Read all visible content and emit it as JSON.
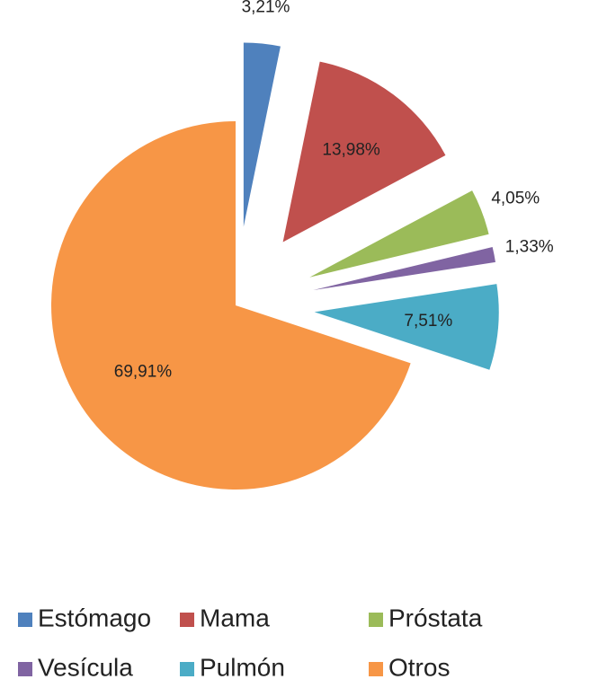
{
  "chart_data": {
    "type": "pie",
    "categories": [
      "Estómago",
      "Mama",
      "Próstata",
      "Vesícula",
      "Pulmón",
      "Otros"
    ],
    "values": [
      3.21,
      13.98,
      4.05,
      1.33,
      7.51,
      69.91
    ],
    "value_labels": [
      "3,21%",
      "13,98%",
      "4,05%",
      "1,33%",
      "7,51%",
      "69,91%"
    ],
    "colors": [
      "#4f81bd",
      "#c0504d",
      "#9bbb59",
      "#8064a2",
      "#4bacc6",
      "#f79646"
    ]
  }
}
